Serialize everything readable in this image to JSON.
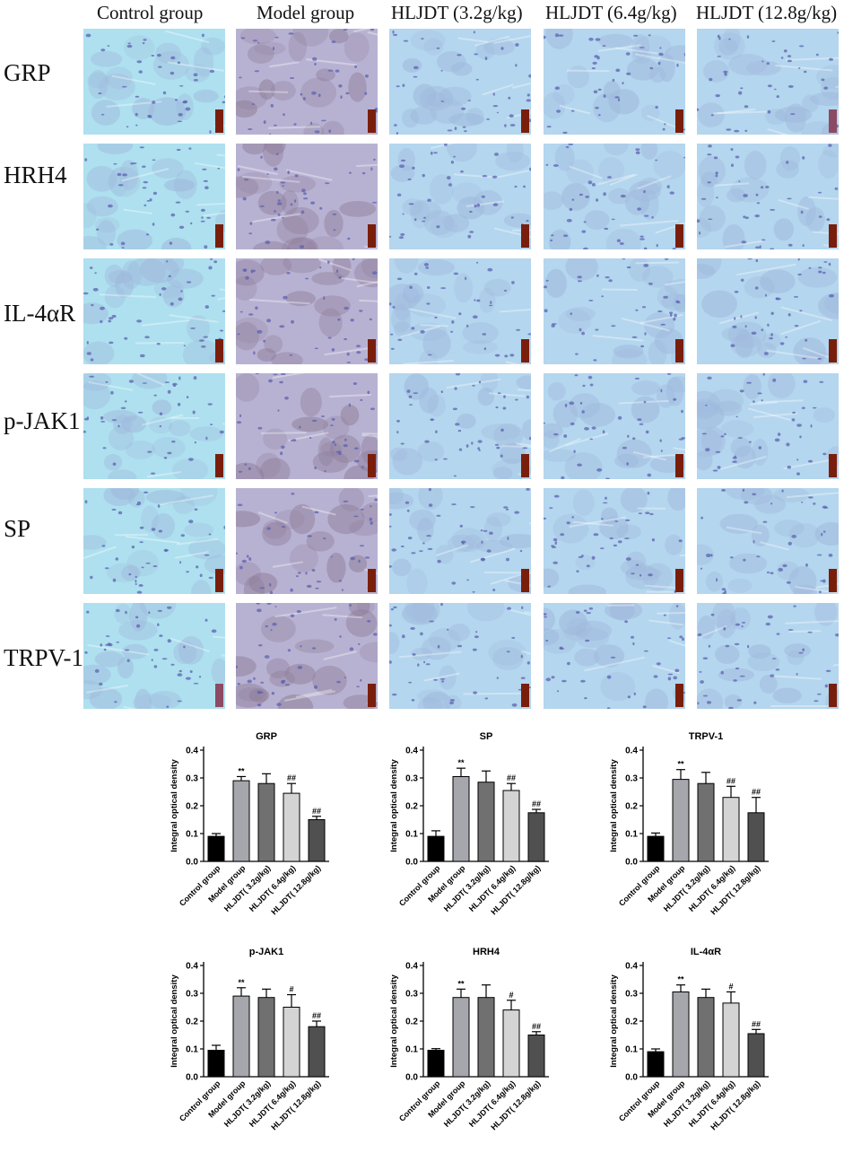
{
  "grid": {
    "column_headers": [
      "Control group",
      "Model group",
      "HLJDT (3.2g/kg)",
      "HLJDT (6.4g/kg)",
      "HLJDT (12.8g/kg)"
    ],
    "row_labels": [
      "GRP",
      "HRH4",
      "IL-4αR",
      "p-JAK1",
      "SP",
      "TRPV-1"
    ],
    "colors": {
      "control_bg": "#aee0ef",
      "model_bg": "#b8b2d2",
      "model_stain": "#8f7f9a",
      "hljdt_bg": "#b4d6ee",
      "nuclei": "#5e62b0",
      "scalebar": "#7a1e0c",
      "scalebar_alt": "#8d4a63"
    }
  },
  "colors": {
    "bar_fills": [
      "#000000",
      "#a6a6ad",
      "#707070",
      "#d4d4d4",
      "#505050"
    ],
    "axis": "#000000"
  },
  "chart_data": [
    {
      "type": "bar",
      "title": "GRP",
      "ylabel": "Integral optical density",
      "ylim": [
        0,
        0.4
      ],
      "yticks": [
        "0.0",
        "0.1",
        "0.2",
        "0.3",
        "0.4"
      ],
      "categories": [
        "Control group",
        "Model group",
        "HLJDT( 3.2g/kg)",
        "HLJDT( 6.4g/kg)",
        "HLJDT( 12.8g/kg)"
      ],
      "values": [
        0.09,
        0.29,
        0.28,
        0.245,
        0.15
      ],
      "errors": [
        0.01,
        0.015,
        0.035,
        0.035,
        0.012
      ],
      "annotations": [
        "",
        "**",
        "",
        "##",
        "##"
      ]
    },
    {
      "type": "bar",
      "title": "SP",
      "ylabel": "Integral optical density",
      "ylim": [
        0,
        0.4
      ],
      "yticks": [
        "0.0",
        "0.1",
        "0.2",
        "0.3",
        "0.4"
      ],
      "categories": [
        "Control group",
        "Model group",
        "HLJDT( 3.2g/kg)",
        "HLJDT( 6.4g/kg)",
        "HLJDT( 12.8g/kg)"
      ],
      "values": [
        0.09,
        0.305,
        0.285,
        0.255,
        0.175
      ],
      "errors": [
        0.02,
        0.03,
        0.04,
        0.025,
        0.012
      ],
      "annotations": [
        "",
        "**",
        "",
        "##",
        "##"
      ]
    },
    {
      "type": "bar",
      "title": "TRPV-1",
      "ylabel": "Integral optical density",
      "ylim": [
        0,
        0.4
      ],
      "yticks": [
        "0.0",
        "0.1",
        "0.2",
        "0.3",
        "0.4"
      ],
      "categories": [
        "Control group",
        "Model group",
        "HLJDT( 3.2g/kg)",
        "HLJDT( 6.4g/kg)",
        "HLJDT( 12.8g/kg)"
      ],
      "values": [
        0.09,
        0.295,
        0.28,
        0.23,
        0.175
      ],
      "errors": [
        0.012,
        0.035,
        0.04,
        0.04,
        0.055
      ],
      "annotations": [
        "",
        "**",
        "",
        "##",
        "##"
      ]
    },
    {
      "type": "bar",
      "title": "p-JAK1",
      "ylabel": "Integral optical density",
      "ylim": [
        0,
        0.4
      ],
      "yticks": [
        "0.0",
        "0.1",
        "0.2",
        "0.3",
        "0.4"
      ],
      "categories": [
        "Control group",
        "Model group",
        "HLJDT( 3.2g/kg)",
        "HLJDT( 6.4g/kg)",
        "HLJDT( 12.8g/kg)"
      ],
      "values": [
        0.095,
        0.29,
        0.285,
        0.25,
        0.18
      ],
      "errors": [
        0.018,
        0.03,
        0.03,
        0.045,
        0.02
      ],
      "annotations": [
        "",
        "**",
        "",
        "#",
        "##"
      ]
    },
    {
      "type": "bar",
      "title": "HRH4",
      "ylabel": "Integral optical density",
      "ylim": [
        0,
        0.4
      ],
      "yticks": [
        "0.0",
        "0.1",
        "0.2",
        "0.3",
        "0.4"
      ],
      "categories": [
        "Control group",
        "Model group",
        "HLJDT( 3.2g/kg)",
        "HLJDT( 6.4g/kg)",
        "HLJDT( 12.8g/kg)"
      ],
      "values": [
        0.095,
        0.285,
        0.285,
        0.24,
        0.15
      ],
      "errors": [
        0.006,
        0.03,
        0.045,
        0.035,
        0.012
      ],
      "annotations": [
        "",
        "**",
        "",
        "#",
        "##"
      ]
    },
    {
      "type": "bar",
      "title": "IL-4αR",
      "ylabel": "Integral optical density",
      "ylim": [
        0,
        0.4
      ],
      "yticks": [
        "0.0",
        "0.1",
        "0.2",
        "0.3",
        "0.4"
      ],
      "categories": [
        "Control group",
        "Model group",
        "HLJDT( 3.2g/kg)",
        "HLJDT( 6.4g/kg)",
        "HLJDT( 12.8g/kg)"
      ],
      "values": [
        0.09,
        0.305,
        0.285,
        0.265,
        0.155
      ],
      "errors": [
        0.01,
        0.025,
        0.03,
        0.04,
        0.015
      ],
      "annotations": [
        "",
        "**",
        "",
        "#",
        "##"
      ]
    }
  ]
}
